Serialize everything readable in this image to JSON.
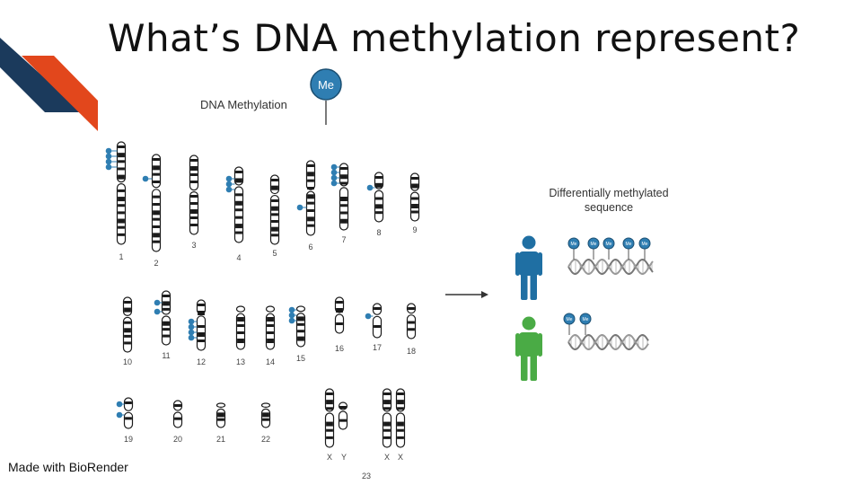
{
  "slide": {
    "title": "What’s DNA methylation represent?",
    "footer": "Made with BioRender"
  },
  "colors": {
    "accent_navy": "#1b3a5c",
    "accent_orange": "#e2471c",
    "methyl_blue": "#2f7eb2",
    "person_blue": "#1f6fa3",
    "person_green": "#4aab45",
    "chromosome_dark": "#1a1a1a"
  },
  "diagram": {
    "legend_label": "DNA Methylation",
    "me_label": "Me",
    "result_label_line1": "Differentially methylated",
    "result_label_line2": "sequence",
    "chromosome_labels": [
      "1",
      "2",
      "3",
      "4",
      "5",
      "6",
      "7",
      "8",
      "9",
      "10",
      "11",
      "12",
      "13",
      "14",
      "15",
      "16",
      "17",
      "18",
      "19",
      "20",
      "21",
      "22"
    ],
    "sex_labels": [
      "X",
      "Y",
      "X",
      "X"
    ],
    "group_label": "23",
    "people": [
      {
        "name": "person-blue",
        "color": "#1f6fa3",
        "methyl_marks": 5
      },
      {
        "name": "person-green",
        "color": "#4aab45",
        "methyl_marks": 2
      }
    ]
  }
}
